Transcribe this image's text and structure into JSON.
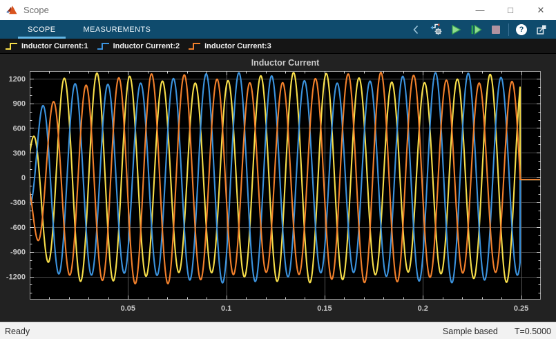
{
  "window": {
    "title": "Scope",
    "controls": {
      "minimize": "—",
      "maximize": "□",
      "close": "✕"
    }
  },
  "ribbon": {
    "tabs": [
      {
        "label": "SCOPE",
        "active": true
      },
      {
        "label": "MEASUREMENTS",
        "active": false
      }
    ],
    "toolbar": {
      "help_glyph": "?",
      "buttons": [
        "step-options",
        "run",
        "step-forward",
        "stop",
        "help",
        "dock"
      ]
    }
  },
  "legend": {
    "items": [
      {
        "label": "Inductor Current:1",
        "color": "#F7DE4A"
      },
      {
        "label": "Inductor Current:2",
        "color": "#3B93DE"
      },
      {
        "label": "Inductor Current:3",
        "color": "#F2802B"
      }
    ]
  },
  "status_bar": {
    "left": "Ready",
    "sample_mode": "Sample based",
    "time": "T=0.5000"
  },
  "chart_data": {
    "type": "line",
    "title": "Inductor Current",
    "xlim": [
      0,
      0.26
    ],
    "ylim": [
      -1480,
      1290
    ],
    "x_ticks": [
      0.05,
      0.1,
      0.15,
      0.2,
      0.25
    ],
    "x_tick_labels": [
      "0.05",
      "0.1",
      "0.15",
      "0.2",
      "0.25"
    ],
    "y_ticks": [
      -1200,
      -900,
      -600,
      -300,
      0,
      300,
      600,
      900,
      1200
    ],
    "x_minor_step": 0.01,
    "y_minor_step": 100,
    "grid": true,
    "background": "#000000",
    "panel": "#222222",
    "grid_color_h": "#4a4a4a",
    "grid_color_v": "#565656",
    "axis_border_color": "#9a9a9a",
    "tick_color": "#d4d4d4",
    "tick_label_color": "#c6c6c6",
    "signal_model": {
      "frequency_hz": 60,
      "amp_base": 300,
      "amp_rise": 910,
      "rise_tau_s": 0.0065,
      "mod_amp": 65,
      "mod_freq_hz": 9,
      "dc_tau_s": 0.033,
      "breaker_open_t": 0.2495,
      "post_break_value": -25,
      "t_end": 0.26,
      "series": [
        {
          "name": "Inductor Current:1",
          "color": "#F7DE4A",
          "phase_rad": 1.24,
          "mod_phase_rad": 0.0,
          "dc0": 0
        },
        {
          "name": "Inductor Current:2",
          "color": "#3B93DE",
          "phase_rad": -0.854,
          "mod_phase_rad": 2.1,
          "dc0": -60
        },
        {
          "name": "Inductor Current:3",
          "color": "#F2802B",
          "phase_rad": -2.949,
          "mod_phase_rad": 4.2,
          "dc0": -120
        }
      ]
    }
  }
}
